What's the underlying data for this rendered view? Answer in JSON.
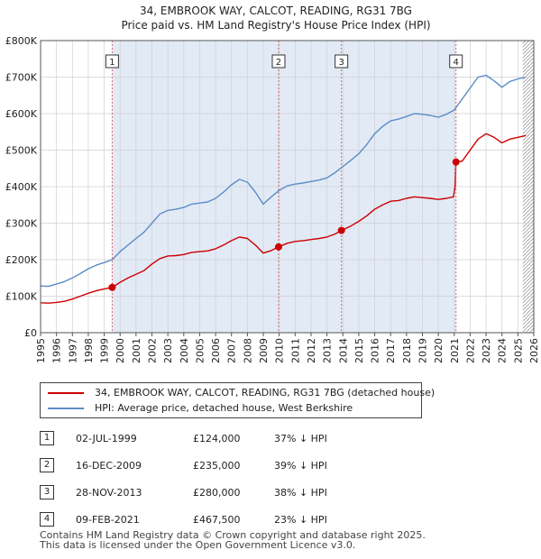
{
  "title": {
    "line1": "34, EMBROOK WAY, CALCOT, READING, RG31 7BG",
    "line2": "Price paid vs. HM Land Registry's House Price Index (HPI)"
  },
  "chart_data": {
    "type": "line",
    "x_range": [
      1995,
      2026
    ],
    "ylim": [
      0,
      800000
    ],
    "x_ticks": [
      1995,
      1996,
      1997,
      1998,
      1999,
      2000,
      2001,
      2002,
      2003,
      2004,
      2005,
      2006,
      2007,
      2008,
      2009,
      2010,
      2011,
      2012,
      2013,
      2014,
      2015,
      2016,
      2017,
      2018,
      2019,
      2020,
      2021,
      2022,
      2023,
      2024,
      2025,
      2026
    ],
    "y_ticks": [
      {
        "value": 0,
        "label": "£0"
      },
      {
        "value": 100000,
        "label": "£100K"
      },
      {
        "value": 200000,
        "label": "£200K"
      },
      {
        "value": 300000,
        "label": "£300K"
      },
      {
        "value": 400000,
        "label": "£400K"
      },
      {
        "value": 500000,
        "label": "£500K"
      },
      {
        "value": 600000,
        "label": "£600K"
      },
      {
        "value": 700000,
        "label": "£700K"
      },
      {
        "value": 800000,
        "label": "£800K"
      }
    ],
    "shaded_range": [
      1999.5,
      2021.1
    ],
    "projection_from": 2025.3,
    "series": [
      {
        "name": "34, EMBROOK WAY, CALCOT, READING, RG31 7BG (detached house)",
        "color": "#cc0000",
        "x": [
          1995.0,
          1995.5,
          1996.0,
          1996.5,
          1997.0,
          1997.5,
          1998.0,
          1998.5,
          1999.0,
          1999.5,
          2000.0,
          2000.5,
          2001.0,
          2001.5,
          2002.0,
          2002.5,
          2003.0,
          2003.5,
          2004.0,
          2004.5,
          2005.0,
          2005.5,
          2006.0,
          2006.5,
          2007.0,
          2007.5,
          2008.0,
          2008.5,
          2009.0,
          2009.5,
          2009.96,
          2010.5,
          2011.0,
          2011.5,
          2012.0,
          2012.5,
          2013.0,
          2013.5,
          2013.91,
          2014.5,
          2015.0,
          2015.5,
          2016.0,
          2016.5,
          2017.0,
          2017.5,
          2018.0,
          2018.5,
          2019.0,
          2019.5,
          2020.0,
          2020.5,
          2020.95,
          2021.05,
          2021.11,
          2021.5,
          2022.0,
          2022.5,
          2023.0,
          2023.5,
          2024.0,
          2024.5,
          2025.0,
          2025.5
        ],
        "values": [
          82000,
          81000,
          83000,
          86000,
          92000,
          100000,
          108000,
          115000,
          120000,
          124000,
          138000,
          150000,
          160000,
          170000,
          188000,
          203000,
          210000,
          211000,
          214000,
          220000,
          222000,
          224000,
          230000,
          240000,
          252000,
          262000,
          258000,
          240000,
          218000,
          225000,
          235000,
          245000,
          250000,
          252000,
          255000,
          258000,
          262000,
          270000,
          280000,
          292000,
          305000,
          320000,
          338000,
          350000,
          360000,
          362000,
          368000,
          372000,
          370000,
          368000,
          365000,
          368000,
          372000,
          400000,
          467500,
          470000,
          500000,
          530000,
          545000,
          535000,
          520000,
          530000,
          535000,
          540000
        ]
      },
      {
        "name": "HPI: Average price, detached house, West Berkshire",
        "color": "#5b8cc8",
        "x": [
          1995.0,
          1995.5,
          1996.0,
          1996.5,
          1997.0,
          1997.5,
          1998.0,
          1998.5,
          1999.0,
          1999.5,
          2000.0,
          2000.5,
          2001.0,
          2001.5,
          2002.0,
          2002.5,
          2003.0,
          2003.5,
          2004.0,
          2004.5,
          2005.0,
          2005.5,
          2006.0,
          2006.5,
          2007.0,
          2007.5,
          2008.0,
          2008.5,
          2009.0,
          2009.5,
          2010.0,
          2010.5,
          2011.0,
          2011.5,
          2012.0,
          2012.5,
          2013.0,
          2013.5,
          2014.0,
          2014.5,
          2015.0,
          2015.5,
          2016.0,
          2016.5,
          2017.0,
          2017.5,
          2018.0,
          2018.5,
          2019.0,
          2019.5,
          2020.0,
          2020.5,
          2021.0,
          2021.5,
          2022.0,
          2022.5,
          2023.0,
          2023.5,
          2024.0,
          2024.5,
          2025.0,
          2025.5
        ],
        "values": [
          128000,
          127000,
          133000,
          140000,
          150000,
          162000,
          175000,
          185000,
          192000,
          200000,
          222000,
          240000,
          258000,
          275000,
          300000,
          325000,
          335000,
          338000,
          343000,
          352000,
          355000,
          358000,
          368000,
          385000,
          405000,
          420000,
          412000,
          385000,
          352000,
          372000,
          390000,
          402000,
          407000,
          410000,
          414000,
          418000,
          424000,
          438000,
          455000,
          472000,
          490000,
          515000,
          545000,
          565000,
          580000,
          585000,
          592000,
          600000,
          598000,
          595000,
          590000,
          598000,
          610000,
          640000,
          670000,
          700000,
          705000,
          690000,
          672000,
          688000,
          695000,
          700000
        ]
      }
    ],
    "sales": [
      {
        "num": "1",
        "x": 1999.5,
        "value": 124000
      },
      {
        "num": "2",
        "x": 2009.96,
        "value": 235000
      },
      {
        "num": "3",
        "x": 2013.91,
        "value": 280000
      },
      {
        "num": "4",
        "x": 2021.11,
        "value": 467500
      }
    ]
  },
  "legend": {
    "property": "34, EMBROOK WAY, CALCOT, READING, RG31 7BG (detached house)",
    "hpi": "HPI: Average price, detached house, West Berkshire"
  },
  "transactions": [
    {
      "num": "1",
      "date": "02-JUL-1999",
      "price": "£124,000",
      "hpi": "37% ↓ HPI"
    },
    {
      "num": "2",
      "date": "16-DEC-2009",
      "price": "£235,000",
      "hpi": "39% ↓ HPI"
    },
    {
      "num": "3",
      "date": "28-NOV-2013",
      "price": "£280,000",
      "hpi": "38% ↓ HPI"
    },
    {
      "num": "4",
      "date": "09-FEB-2021",
      "price": "£467,500",
      "hpi": "23% ↓ HPI"
    }
  ],
  "footer": {
    "line1": "Contains HM Land Registry data © Crown copyright and database right 2025.",
    "line2": "This data is licensed under the Open Government Licence v3.0."
  },
  "colors": {
    "property_line": "#cc0000",
    "hpi_line": "#5b8cc8",
    "shade": "#dde6f5",
    "grid": "#d0d0d0"
  }
}
